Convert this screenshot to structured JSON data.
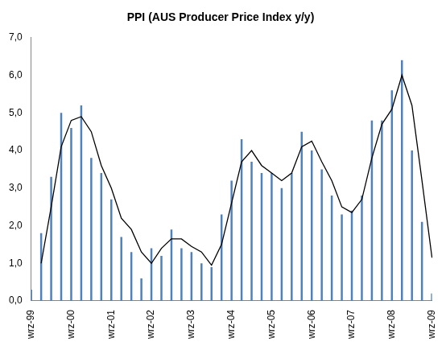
{
  "chart_data": {
    "type": "bar",
    "title": "PPI (AUS Producer Price Index y/y)",
    "categories": [
      "wrz-99",
      null,
      null,
      null,
      "wrz-00",
      null,
      null,
      null,
      "wrz-01",
      null,
      null,
      null,
      "wrz-02",
      null,
      null,
      null,
      "wrz-03",
      null,
      null,
      null,
      "wrz-04",
      null,
      null,
      null,
      "wrz-05",
      null,
      null,
      null,
      "wrz-06",
      null,
      null,
      null,
      "wrz-07",
      null,
      null,
      null,
      "wrz-08",
      null,
      null,
      null,
      "wrz-09"
    ],
    "series": [
      {
        "type": "bar",
        "color": "#4f81bd",
        "values": [
          0.3,
          1.8,
          3.3,
          5.0,
          4.6,
          5.2,
          3.8,
          3.4,
          2.7,
          1.7,
          1.3,
          0.6,
          1.4,
          1.2,
          1.9,
          1.4,
          1.3,
          1.0,
          0.9,
          2.3,
          3.2,
          4.3,
          3.7,
          3.4,
          3.4,
          3.0,
          3.4,
          4.5,
          4.0,
          3.5,
          2.8,
          2.3,
          2.4,
          2.8,
          4.8,
          4.8,
          5.6,
          6.4,
          4.0,
          2.1,
          0.2
        ]
      },
      {
        "type": "line",
        "color": "#000000",
        "values": [
          null,
          1.0,
          2.5,
          4.1,
          4.8,
          4.9,
          4.5,
          3.6,
          3.0,
          2.2,
          1.9,
          1.3,
          1.0,
          1.4,
          1.65,
          1.65,
          1.45,
          1.3,
          0.95,
          1.5,
          2.6,
          3.7,
          4.0,
          3.6,
          3.4,
          3.2,
          3.4,
          4.1,
          4.25,
          3.7,
          3.2,
          2.5,
          2.35,
          2.7,
          3.8,
          4.7,
          5.1,
          6.0,
          5.2,
          3.2,
          1.15
        ]
      }
    ],
    "ylim": [
      0,
      7
    ],
    "yticks": [
      {
        "value": 0,
        "label": "0,0"
      },
      {
        "value": 1,
        "label": "1,0"
      },
      {
        "value": 2,
        "label": "2,0"
      },
      {
        "value": 3,
        "label": "3,0"
      },
      {
        "value": 4,
        "label": "4,0"
      },
      {
        "value": 5,
        "label": "5,0"
      },
      {
        "value": 6,
        "label": "6,0"
      },
      {
        "value": 7,
        "label": "7,0"
      }
    ],
    "grid": false
  }
}
